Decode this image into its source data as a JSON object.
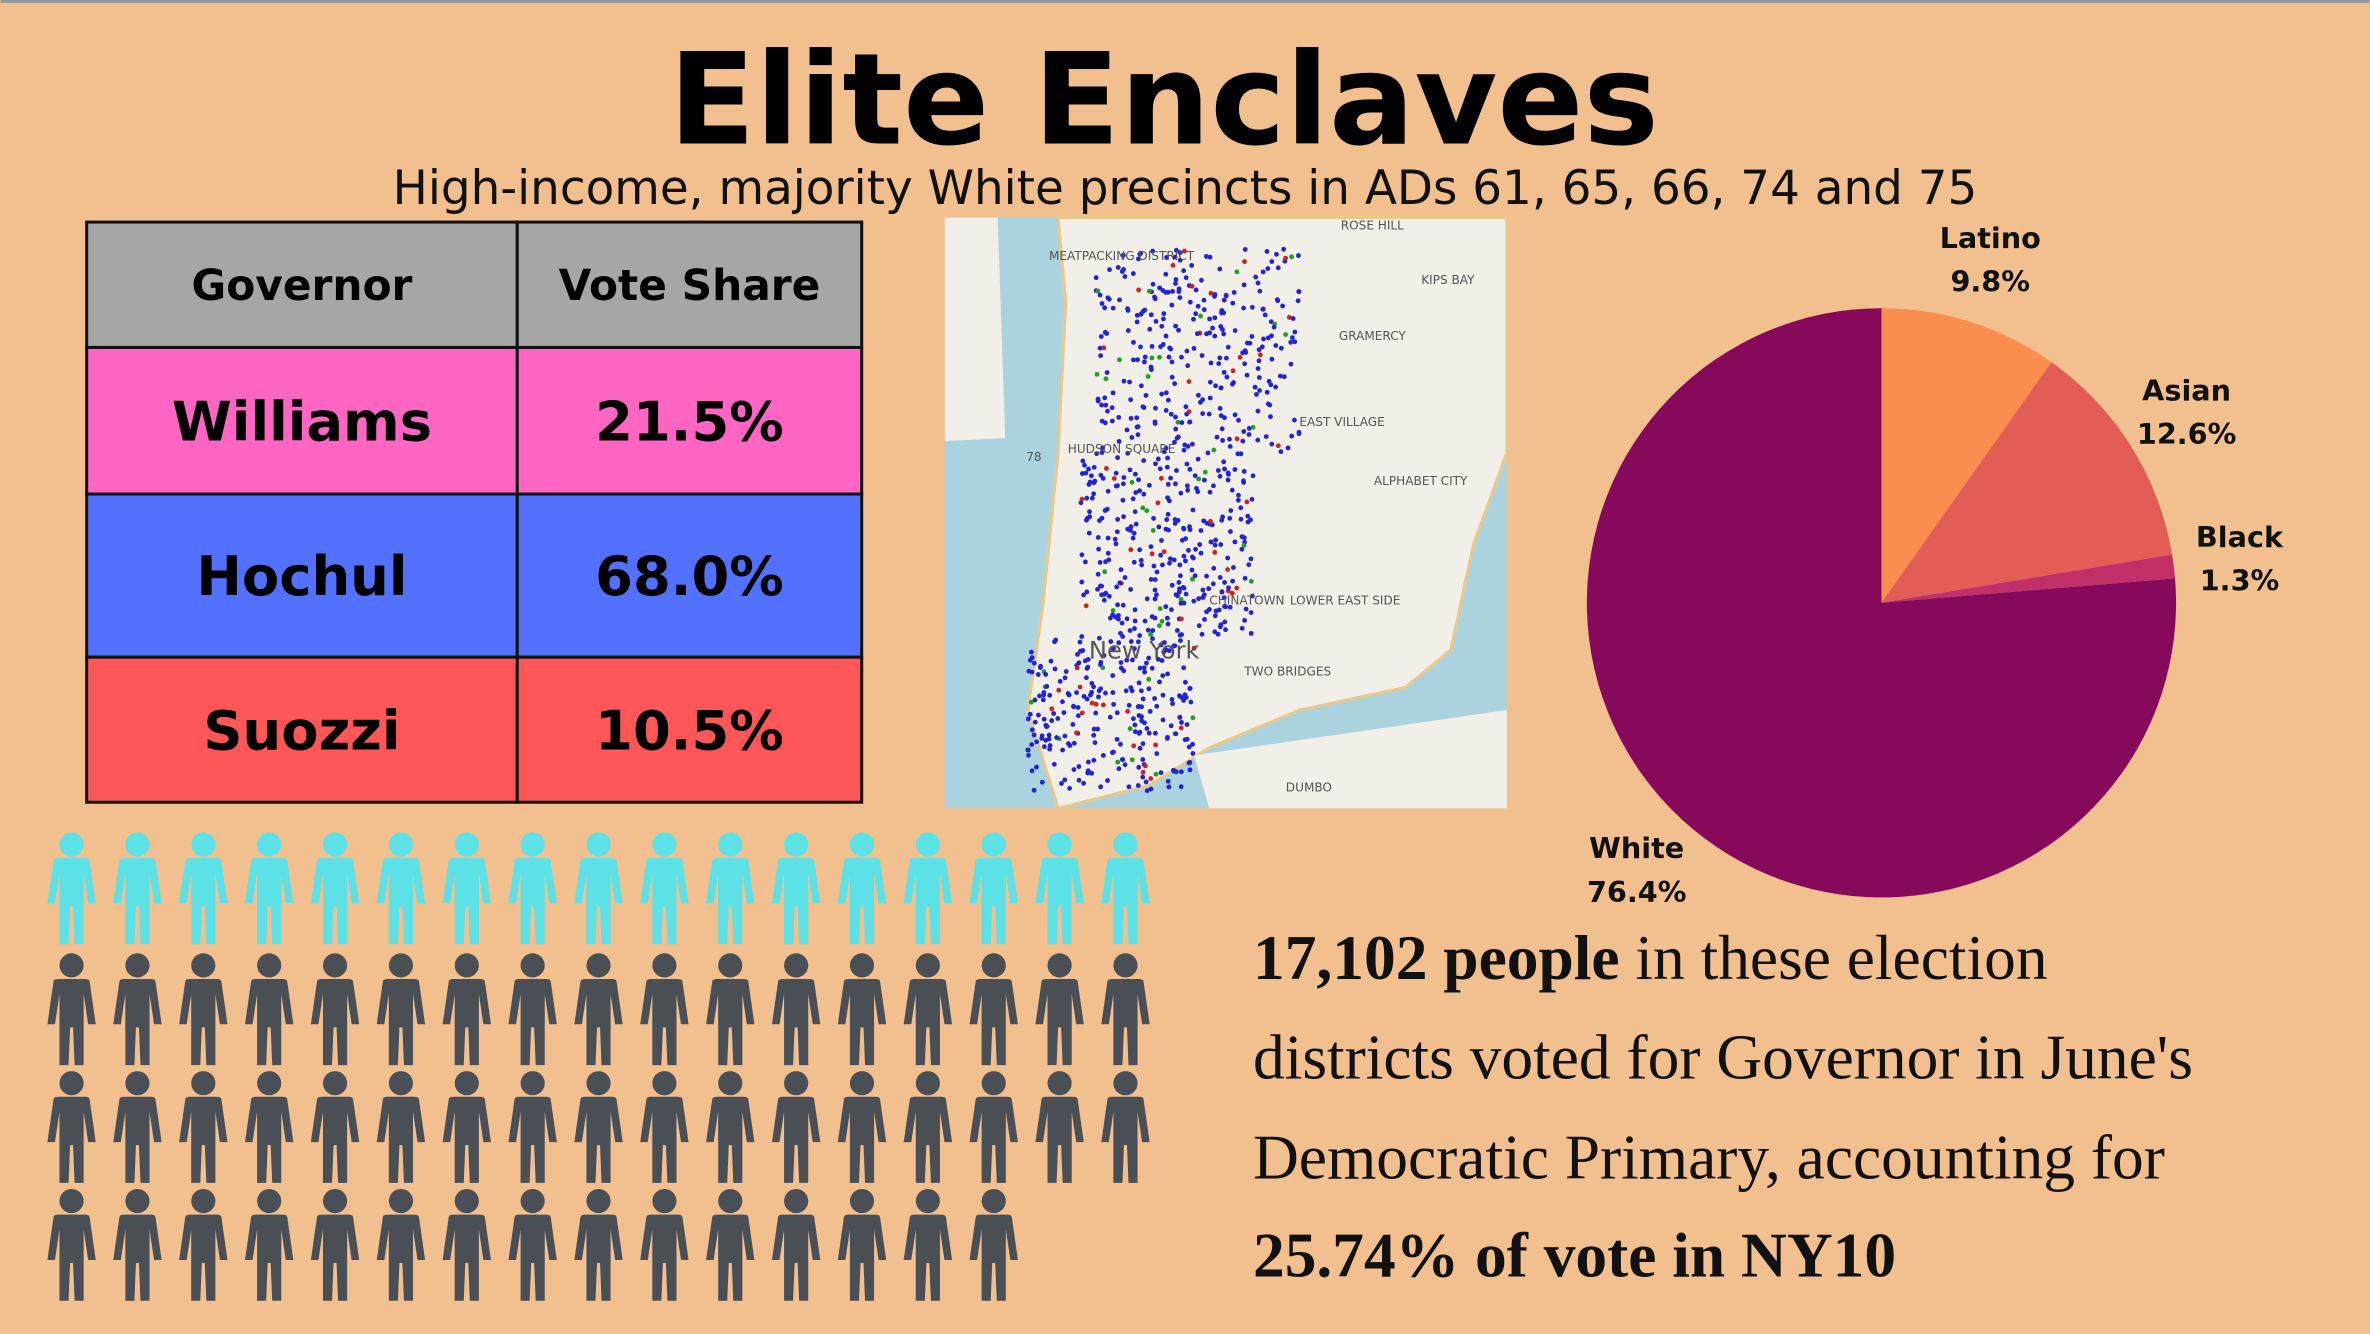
{
  "header": {
    "title": "Elite Enclaves",
    "subtitle": "High-income, majority White precincts in ADs 61, 65, 66, 74 and 75"
  },
  "table": {
    "header": [
      "Governor",
      "Vote Share"
    ],
    "header_color": "#a6a6a6",
    "rows": [
      [
        "Williams",
        "21.5%"
      ],
      [
        "Hochul",
        "68.0%"
      ],
      [
        "Suozzi",
        "10.5%"
      ]
    ],
    "row_colors": [
      "#ff66c4",
      "#5271ff",
      "#ff5757"
    ]
  },
  "map": {
    "labels": [
      "ROSE HILL",
      "KIPS BAY",
      "GRAMERCY",
      "MEATPACKING DISTRICT",
      "EAST VILLAGE",
      "ALPHABET CITY",
      "HUDSON SQUARE",
      "CHINATOWN",
      "LOWER EAST SIDE",
      "New York",
      "TWO BRIDGES",
      "DUMBO",
      "78"
    ]
  },
  "chart_data": {
    "type": "pie",
    "categories": [
      "Latino",
      "Asian",
      "Black",
      "White"
    ],
    "values": [
      9.8,
      12.6,
      1.3,
      76.4
    ],
    "value_labels": [
      "9.8%",
      "12.6%",
      "1.3%",
      "76.4%"
    ],
    "colors": [
      "#fa8e4e",
      "#e15d56",
      "#c2306a",
      "#86095b"
    ]
  },
  "text": {
    "lines": [
      [
        {
          "text": "17,102 people",
          "bold": true
        },
        {
          "text": " in these election",
          "bold": false
        }
      ],
      [
        {
          "text": "districts voted for Governor in June's",
          "bold": false
        }
      ],
      [
        {
          "text": "Democratic Primary, accounting for",
          "bold": false
        }
      ],
      [
        {
          "text": "25.74% of vote in NY10",
          "bold": true
        }
      ]
    ]
  }
}
